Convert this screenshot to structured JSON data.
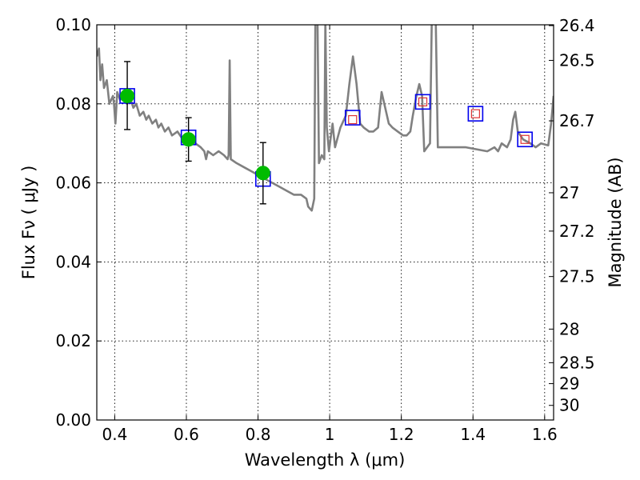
{
  "chart_data": {
    "type": "scatter",
    "xlabel": "Wavelength  λ (μm)",
    "ylabel": "Flux  Fν  ( μJy )",
    "y2label": "Magnitude (AB)",
    "xlim": [
      0.35,
      1.625
    ],
    "ylim": [
      0.0,
      0.1
    ],
    "grid": true,
    "x_ticks": [
      0.4,
      0.6,
      0.8,
      1.0,
      1.2,
      1.4,
      1.6
    ],
    "x_tick_labels": [
      "0.4",
      "0.6",
      "0.8",
      "1",
      "1.2",
      "1.4",
      "1.6"
    ],
    "y_ticks": [
      0.0,
      0.02,
      0.04,
      0.06,
      0.08,
      0.1
    ],
    "y_tick_labels": [
      "0.00",
      "0.02",
      "0.04",
      "0.06",
      "0.08",
      "0.10"
    ],
    "y2_ticks": [
      {
        "label": "26.4",
        "flux": 0.0998
      },
      {
        "label": "26.5",
        "flux": 0.091
      },
      {
        "label": "26.7",
        "flux": 0.0757
      },
      {
        "label": "27",
        "flux": 0.0575
      },
      {
        "label": "27.2",
        "flux": 0.0478
      },
      {
        "label": "27.5",
        "flux": 0.0363
      },
      {
        "label": "28",
        "flux": 0.023
      },
      {
        "label": "28.5",
        "flux": 0.0145
      },
      {
        "label": "29",
        "flux": 0.0092
      },
      {
        "label": "30",
        "flux": 0.0037
      }
    ],
    "series": [
      {
        "kind": "model_spectrum",
        "color": "#808080",
        "points": [
          [
            0.35,
            0.092
          ],
          [
            0.356,
            0.094
          ],
          [
            0.36,
            0.086
          ],
          [
            0.365,
            0.09
          ],
          [
            0.37,
            0.084
          ],
          [
            0.378,
            0.086
          ],
          [
            0.385,
            0.08
          ],
          [
            0.395,
            0.082
          ],
          [
            0.398,
            0.08
          ],
          [
            0.402,
            0.075
          ],
          [
            0.407,
            0.083
          ],
          [
            0.415,
            0.081
          ],
          [
            0.425,
            0.082
          ],
          [
            0.435,
            0.08
          ],
          [
            0.445,
            0.081
          ],
          [
            0.452,
            0.079
          ],
          [
            0.46,
            0.08
          ],
          [
            0.47,
            0.077
          ],
          [
            0.48,
            0.078
          ],
          [
            0.488,
            0.076
          ],
          [
            0.495,
            0.077
          ],
          [
            0.505,
            0.075
          ],
          [
            0.515,
            0.076
          ],
          [
            0.522,
            0.074
          ],
          [
            0.53,
            0.075
          ],
          [
            0.54,
            0.073
          ],
          [
            0.55,
            0.074
          ],
          [
            0.56,
            0.072
          ],
          [
            0.575,
            0.073
          ],
          [
            0.59,
            0.071
          ],
          [
            0.61,
            0.071
          ],
          [
            0.625,
            0.07
          ],
          [
            0.64,
            0.069
          ],
          [
            0.65,
            0.068
          ],
          [
            0.655,
            0.066
          ],
          [
            0.66,
            0.068
          ],
          [
            0.675,
            0.067
          ],
          [
            0.69,
            0.068
          ],
          [
            0.705,
            0.067
          ],
          [
            0.715,
            0.066
          ],
          [
            0.718,
            0.067
          ],
          [
            0.721,
            0.091
          ],
          [
            0.724,
            0.066
          ],
          [
            0.74,
            0.065
          ],
          [
            0.76,
            0.064
          ],
          [
            0.78,
            0.063
          ],
          [
            0.8,
            0.062
          ],
          [
            0.82,
            0.061
          ],
          [
            0.84,
            0.06
          ],
          [
            0.86,
            0.059
          ],
          [
            0.88,
            0.058
          ],
          [
            0.9,
            0.057
          ],
          [
            0.92,
            0.057
          ],
          [
            0.935,
            0.056
          ],
          [
            0.94,
            0.054
          ],
          [
            0.95,
            0.053
          ],
          [
            0.957,
            0.056
          ],
          [
            0.96,
            0.101
          ],
          [
            0.966,
            0.101
          ],
          [
            0.97,
            0.065
          ],
          [
            0.978,
            0.067
          ],
          [
            0.985,
            0.066
          ],
          [
            0.988,
            0.101
          ],
          [
            0.992,
            0.074
          ],
          [
            0.998,
            0.068
          ],
          [
            1.008,
            0.075
          ],
          [
            1.015,
            0.069
          ],
          [
            1.03,
            0.074
          ],
          [
            1.045,
            0.077
          ],
          [
            1.055,
            0.085
          ],
          [
            1.065,
            0.092
          ],
          [
            1.075,
            0.085
          ],
          [
            1.085,
            0.075
          ],
          [
            1.095,
            0.074
          ],
          [
            1.11,
            0.073
          ],
          [
            1.122,
            0.073
          ],
          [
            1.135,
            0.074
          ],
          [
            1.145,
            0.083
          ],
          [
            1.155,
            0.079
          ],
          [
            1.165,
            0.075
          ],
          [
            1.175,
            0.074
          ],
          [
            1.19,
            0.073
          ],
          [
            1.205,
            0.072
          ],
          [
            1.215,
            0.072
          ],
          [
            1.225,
            0.073
          ],
          [
            1.232,
            0.077
          ],
          [
            1.242,
            0.082
          ],
          [
            1.25,
            0.085
          ],
          [
            1.258,
            0.082
          ],
          [
            1.264,
            0.068
          ],
          [
            1.272,
            0.069
          ],
          [
            1.28,
            0.07
          ],
          [
            1.285,
            0.101
          ],
          [
            1.296,
            0.101
          ],
          [
            1.302,
            0.069
          ],
          [
            1.32,
            0.069
          ],
          [
            1.35,
            0.069
          ],
          [
            1.38,
            0.069
          ],
          [
            1.41,
            0.0685
          ],
          [
            1.44,
            0.068
          ],
          [
            1.46,
            0.069
          ],
          [
            1.47,
            0.068
          ],
          [
            1.48,
            0.07
          ],
          [
            1.495,
            0.069
          ],
          [
            1.505,
            0.071
          ],
          [
            1.512,
            0.076
          ],
          [
            1.518,
            0.078
          ],
          [
            1.525,
            0.073
          ],
          [
            1.54,
            0.071
          ],
          [
            1.56,
            0.07
          ],
          [
            1.575,
            0.069
          ],
          [
            1.59,
            0.07
          ],
          [
            1.61,
            0.0695
          ],
          [
            1.618,
            0.075
          ],
          [
            1.625,
            0.082
          ]
        ]
      },
      {
        "kind": "measured_flux",
        "marker": "filled-circle",
        "color": "#00bb00",
        "points": [
          {
            "x": 0.435,
            "y": 0.082,
            "yerr_low": 0.0735,
            "yerr_high": 0.0907
          },
          {
            "x": 0.606,
            "y": 0.071,
            "yerr_low": 0.0655,
            "yerr_high": 0.0765
          },
          {
            "x": 0.814,
            "y": 0.0625,
            "yerr_low": 0.0547,
            "yerr_high": 0.0702
          }
        ]
      },
      {
        "kind": "model_band_flux",
        "marker": "open-square",
        "color": "#0000ee",
        "points": [
          {
            "x": 0.435,
            "y": 0.082
          },
          {
            "x": 0.606,
            "y": 0.0715
          },
          {
            "x": 0.814,
            "y": 0.061
          },
          {
            "x": 1.064,
            "y": 0.0765
          },
          {
            "x": 1.26,
            "y": 0.0805
          },
          {
            "x": 1.407,
            "y": 0.0775
          },
          {
            "x": 1.545,
            "y": 0.071
          }
        ]
      },
      {
        "kind": "model_band_flux_small",
        "marker": "open-square",
        "color": "#dd3333",
        "points": [
          {
            "x": 1.064,
            "y": 0.076
          },
          {
            "x": 1.26,
            "y": 0.0805
          },
          {
            "x": 1.407,
            "y": 0.0775
          },
          {
            "x": 1.545,
            "y": 0.071
          }
        ]
      }
    ]
  }
}
